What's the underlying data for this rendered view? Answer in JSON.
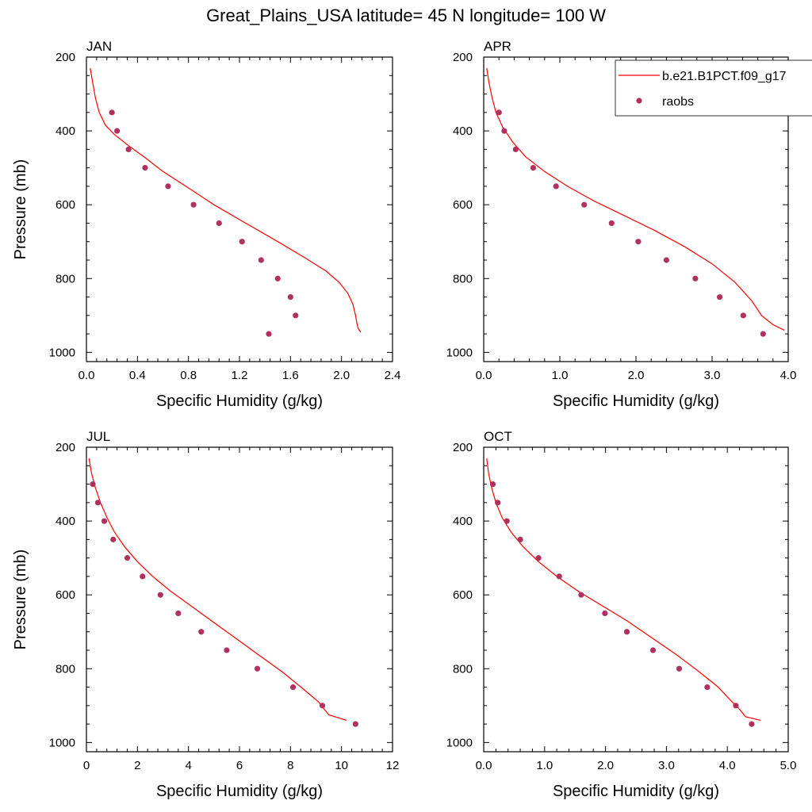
{
  "figure": {
    "title": "Great_Plains_USA  latitude= 45 N longitude= 100 W",
    "legend": {
      "placement": "top-right of APR panel",
      "entries": [
        {
          "label": "b.e21.B1PCT.f09_g17",
          "style": "line",
          "color": "#ff0000"
        },
        {
          "label": "raobs",
          "style": "marker",
          "color": "#b03060"
        }
      ]
    },
    "colors": {
      "model_line": "#ff0000",
      "obs_marker": "#b03060"
    }
  },
  "chart_data": [
    {
      "type": "line",
      "panel_label": "JAN",
      "xlabel": "Specific Humidity (g/kg)",
      "ylabel": "Pressure (mb)",
      "xlim": [
        0,
        2.4
      ],
      "ylim": [
        1025,
        200
      ],
      "y_inverted": true,
      "xticks": [
        0,
        0.4,
        0.8,
        1.2,
        1.6,
        2.0,
        2.4
      ],
      "xtick_labels": [
        "0.0",
        "0.4",
        "0.8",
        "1.2",
        "1.6",
        "2.0",
        "2.4"
      ],
      "yticks": [
        200,
        400,
        600,
        800,
        1000
      ],
      "ytick_labels": [
        "200",
        "400",
        "600",
        "800",
        "1000"
      ],
      "series": [
        {
          "name": "b.e21.B1PCT.f09_g17",
          "kind": "line",
          "x": [
            0.03,
            0.05,
            0.07,
            0.1,
            0.15,
            0.22,
            0.33,
            0.47,
            0.6,
            0.78,
            1.0,
            1.25,
            1.5,
            1.72,
            1.88,
            1.98,
            2.05,
            2.09,
            2.11,
            2.12,
            2.13,
            2.15
          ],
          "y": [
            230,
            270,
            310,
            350,
            385,
            410,
            440,
            475,
            510,
            550,
            600,
            650,
            700,
            745,
            780,
            810,
            840,
            870,
            900,
            920,
            935,
            945
          ]
        },
        {
          "name": "raobs",
          "kind": "scatter",
          "x": [
            0.2,
            0.24,
            0.33,
            0.46,
            0.64,
            0.84,
            1.04,
            1.22,
            1.37,
            1.5,
            1.6,
            1.64,
            1.43
          ],
          "y": [
            350,
            400,
            450,
            500,
            550,
            600,
            650,
            700,
            750,
            800,
            850,
            900,
            950
          ]
        }
      ]
    },
    {
      "type": "line",
      "panel_label": "APR",
      "xlabel": "Specific Humidity (g/kg)",
      "ylabel": "",
      "xlim": [
        0,
        4.0
      ],
      "ylim": [
        1025,
        200
      ],
      "y_inverted": true,
      "xticks": [
        0,
        1.0,
        2.0,
        3.0,
        4.0
      ],
      "xtick_labels": [
        "0.0",
        "1.0",
        "2.0",
        "3.0",
        "4.0"
      ],
      "yticks": [
        200,
        400,
        600,
        800,
        1000
      ],
      "ytick_labels": [
        "200",
        "400",
        "600",
        "800",
        "1000"
      ],
      "series": [
        {
          "name": "b.e21.B1PCT.f09_g17",
          "kind": "line",
          "x": [
            0.04,
            0.07,
            0.11,
            0.16,
            0.25,
            0.38,
            0.55,
            0.8,
            1.1,
            1.45,
            1.85,
            2.25,
            2.65,
            3.0,
            3.3,
            3.52,
            3.65,
            3.8,
            3.95
          ],
          "y": [
            230,
            270,
            310,
            350,
            390,
            430,
            470,
            510,
            550,
            590,
            630,
            670,
            715,
            760,
            810,
            860,
            900,
            925,
            940
          ]
        },
        {
          "name": "raobs",
          "kind": "scatter",
          "x": [
            0.2,
            0.27,
            0.42,
            0.65,
            0.95,
            1.32,
            1.68,
            2.03,
            2.4,
            2.78,
            3.1,
            3.41,
            3.67
          ],
          "y": [
            350,
            400,
            450,
            500,
            550,
            600,
            650,
            700,
            750,
            800,
            850,
            900,
            950
          ]
        }
      ]
    },
    {
      "type": "line",
      "panel_label": "JUL",
      "xlabel": "Specific Humidity (g/kg)",
      "ylabel": "Pressure (mb)",
      "xlim": [
        0,
        12
      ],
      "ylim": [
        1025,
        200
      ],
      "y_inverted": true,
      "xticks": [
        0,
        2,
        4,
        6,
        8,
        10,
        12
      ],
      "xtick_labels": [
        "0",
        "2",
        "4",
        "6",
        "8",
        "10",
        "12"
      ],
      "yticks": [
        200,
        400,
        600,
        800,
        1000
      ],
      "ytick_labels": [
        "200",
        "400",
        "600",
        "800",
        "1000"
      ],
      "series": [
        {
          "name": "b.e21.B1PCT.f09_g17",
          "kind": "line",
          "x": [
            0.1,
            0.2,
            0.35,
            0.55,
            0.8,
            1.1,
            1.5,
            2.0,
            2.6,
            3.3,
            4.1,
            5.0,
            5.9,
            6.8,
            7.7,
            8.5,
            9.1,
            9.5,
            10.2
          ],
          "y": [
            230,
            270,
            310,
            350,
            390,
            430,
            470,
            510,
            550,
            590,
            630,
            675,
            720,
            765,
            810,
            855,
            890,
            925,
            940
          ]
        },
        {
          "name": "raobs",
          "kind": "scatter",
          "x": [
            0.25,
            0.45,
            0.7,
            1.05,
            1.6,
            2.2,
            2.9,
            3.6,
            4.5,
            5.5,
            6.7,
            8.1,
            9.25,
            10.55
          ],
          "y": [
            300,
            350,
            400,
            450,
            500,
            550,
            600,
            650,
            700,
            750,
            800,
            850,
            900,
            950
          ]
        }
      ]
    },
    {
      "type": "line",
      "panel_label": "OCT",
      "xlabel": "Specific Humidity (g/kg)",
      "ylabel": "",
      "xlim": [
        0,
        5.0
      ],
      "ylim": [
        1025,
        200
      ],
      "y_inverted": true,
      "xticks": [
        0,
        1.0,
        2.0,
        3.0,
        4.0,
        5.0
      ],
      "xtick_labels": [
        "0.0",
        "1.0",
        "2.0",
        "3.0",
        "4.0",
        "5.0"
      ],
      "yticks": [
        200,
        400,
        600,
        800,
        1000
      ],
      "ytick_labels": [
        "200",
        "400",
        "600",
        "800",
        "1000"
      ],
      "series": [
        {
          "name": "b.e21.B1PCT.f09_g17",
          "kind": "line",
          "x": [
            0.05,
            0.08,
            0.13,
            0.2,
            0.3,
            0.45,
            0.65,
            0.9,
            1.2,
            1.55,
            1.95,
            2.35,
            2.75,
            3.15,
            3.55,
            3.85,
            4.05,
            4.2,
            4.3,
            4.55
          ],
          "y": [
            230,
            270,
            310,
            350,
            390,
            430,
            470,
            510,
            550,
            590,
            630,
            670,
            715,
            760,
            810,
            850,
            885,
            910,
            930,
            940
          ]
        },
        {
          "name": "raobs",
          "kind": "scatter",
          "x": [
            0.15,
            0.23,
            0.38,
            0.6,
            0.9,
            1.24,
            1.6,
            1.99,
            2.35,
            2.78,
            3.21,
            3.67,
            4.14,
            4.4
          ],
          "y": [
            300,
            350,
            400,
            450,
            500,
            550,
            600,
            650,
            700,
            750,
            800,
            850,
            900,
            950
          ]
        }
      ]
    }
  ]
}
